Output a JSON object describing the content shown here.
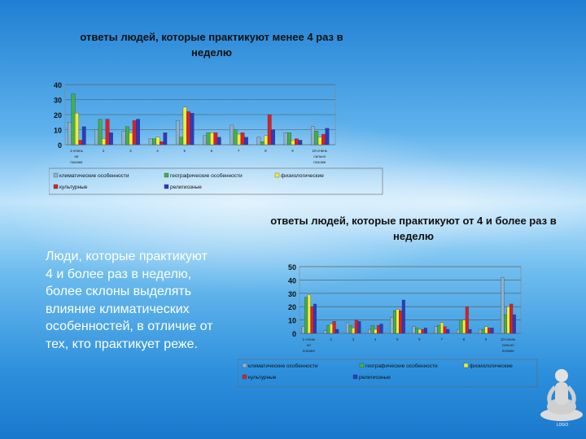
{
  "slide": {
    "chart1_title": "ответы людей, которые практикуют менее 4 раз в неделю",
    "chart2_title": "ответы людей, которые практикуют от 4 и более раз в неделю",
    "body_text": "Люди, которые практикуют 4 и более раз в неделю, более склоны выделять влияние климатических особенностей, в отличие от тех, кто практикует реже.",
    "caption": "LOGO"
  },
  "colors": {
    "climatic": "#8fb0cc",
    "geographic": "#3fb04f",
    "physiological": "#f2ec3a",
    "cultural": "#d9202a",
    "religious": "#2a3bc0"
  },
  "chart_data": [
    {
      "type": "bar",
      "title": "ответы людей, которые практикуют менее 4 раз в неделю",
      "categories": [
        "1-очень не похоже",
        "2",
        "3",
        "4",
        "5",
        "6",
        "7",
        "8",
        "9",
        "10-очень сильно похоже"
      ],
      "ylim": [
        0,
        40
      ],
      "yticks": [
        0,
        10,
        20,
        30,
        40
      ],
      "legend": "bottom",
      "series": [
        {
          "name": "климатические особенности",
          "values": [
            15,
            10,
            9,
            4,
            16,
            6,
            13,
            5,
            8,
            12
          ]
        },
        {
          "name": "географические особенности",
          "values": [
            34,
            17,
            12,
            4,
            5,
            8,
            10,
            2,
            8,
            9
          ]
        },
        {
          "name": "физиологические",
          "values": [
            21,
            4,
            8,
            5,
            25,
            8,
            7,
            6,
            3,
            5
          ]
        },
        {
          "name": "культурные",
          "values": [
            3,
            17,
            16,
            2,
            22,
            8,
            8,
            20,
            4,
            7
          ]
        },
        {
          "name": "религиозные",
          "values": [
            12,
            8,
            17,
            8,
            21,
            5,
            5,
            10,
            3,
            11
          ]
        }
      ]
    },
    {
      "type": "bar",
      "title": "ответы людей, которые практикуют от 4 и более раз в неделю",
      "categories": [
        "1-очень не похоже",
        "2",
        "3",
        "4",
        "5",
        "6",
        "7",
        "8",
        "9",
        "10-очень сильно похоже"
      ],
      "ylim": [
        0,
        50
      ],
      "yticks": [
        0,
        10,
        20,
        30,
        40,
        50
      ],
      "legend": "bottom",
      "series": [
        {
          "name": "климатические особенности",
          "values": [
            5,
            2,
            8,
            3,
            12,
            5,
            5,
            3,
            3,
            42
          ]
        },
        {
          "name": "географические особенности",
          "values": [
            27,
            6,
            6,
            6,
            17,
            4,
            6,
            10,
            3,
            14
          ]
        },
        {
          "name": "физиологические",
          "values": [
            29,
            7,
            4,
            3,
            18,
            3,
            8,
            10,
            5,
            20
          ]
        },
        {
          "name": "культурные",
          "values": [
            20,
            9,
            10,
            6,
            17,
            3,
            5,
            20,
            4,
            22
          ]
        },
        {
          "name": "религиозные",
          "values": [
            22,
            3,
            9,
            7,
            25,
            4,
            3,
            3,
            4,
            14
          ]
        }
      ]
    }
  ]
}
